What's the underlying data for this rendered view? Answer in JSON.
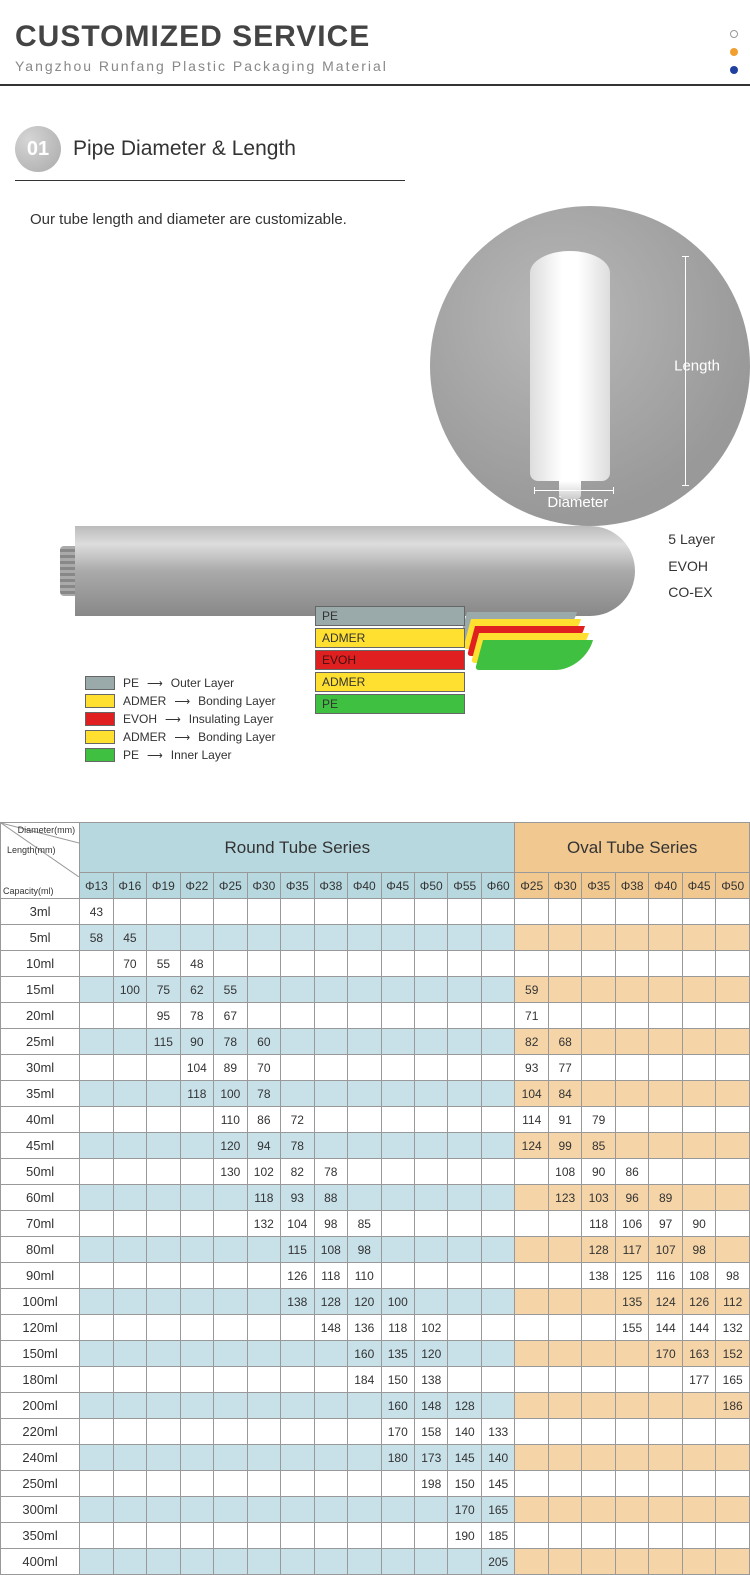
{
  "header": {
    "title": "CUSTOMIZED SERVICE",
    "subtitle": "Yangzhou Runfang Plastic Packaging Material"
  },
  "section1": {
    "badge": "01",
    "title": "Pipe Diameter & Length",
    "desc": "Our tube length and diameter are customizable.",
    "length_label": "Length",
    "diameter_label": "Diameter"
  },
  "diagram": {
    "side_labels": [
      "5 Layer",
      "EVOH",
      "CO-EX"
    ],
    "peel_labels": [
      "PE",
      "ADMER",
      "EVOH",
      "ADMER",
      "PE"
    ],
    "legend": [
      {
        "color": "#9aaaaa",
        "mat": "PE",
        "role": "Outer Layer"
      },
      {
        "color": "#ffe030",
        "mat": "ADMER",
        "role": "Bonding Layer"
      },
      {
        "color": "#e02020",
        "mat": "EVOH",
        "role": "Insulating Layer"
      },
      {
        "color": "#ffe030",
        "mat": "ADMER",
        "role": "Bonding Layer"
      },
      {
        "color": "#40c040",
        "mat": "PE",
        "role": "Inner Layer"
      }
    ]
  },
  "table": {
    "colors": {
      "round_bg": "#b8d8e0",
      "round_alt": "#c8e0e8",
      "oval_bg": "#f0c890",
      "oval_alt": "#f5d5a8",
      "border": "#999999"
    },
    "corner_labels": [
      "Diameter(mm)",
      "Length(mm)",
      "Capacity(ml)"
    ],
    "round_header": "Round Tube Series",
    "oval_header": "Oval Tube Series",
    "round_cols": [
      "Φ13",
      "Φ16",
      "Φ19",
      "Φ22",
      "Φ25",
      "Φ30",
      "Φ35",
      "Φ38",
      "Φ40",
      "Φ45",
      "Φ50",
      "Φ55",
      "Φ60"
    ],
    "oval_cols": [
      "Φ25",
      "Φ30",
      "Φ35",
      "Φ38",
      "Φ40",
      "Φ45",
      "Φ50"
    ],
    "rows": [
      {
        "cap": "3ml",
        "r": [
          "43",
          "",
          "",
          "",
          "",
          "",
          "",
          "",
          "",
          "",
          "",
          "",
          ""
        ],
        "o": [
          "",
          "",
          "",
          "",
          "",
          "",
          ""
        ]
      },
      {
        "cap": "5ml",
        "r": [
          "58",
          "45",
          "",
          "",
          "",
          "",
          "",
          "",
          "",
          "",
          "",
          "",
          ""
        ],
        "o": [
          "",
          "",
          "",
          "",
          "",
          "",
          ""
        ]
      },
      {
        "cap": "10ml",
        "r": [
          "",
          "70",
          "55",
          "48",
          "",
          "",
          "",
          "",
          "",
          "",
          "",
          "",
          ""
        ],
        "o": [
          "",
          "",
          "",
          "",
          "",
          "",
          ""
        ]
      },
      {
        "cap": "15ml",
        "r": [
          "",
          "100",
          "75",
          "62",
          "55",
          "",
          "",
          "",
          "",
          "",
          "",
          "",
          ""
        ],
        "o": [
          "59",
          "",
          "",
          "",
          "",
          "",
          ""
        ]
      },
      {
        "cap": "20ml",
        "r": [
          "",
          "",
          "95",
          "78",
          "67",
          "",
          "",
          "",
          "",
          "",
          "",
          "",
          ""
        ],
        "o": [
          "71",
          "",
          "",
          "",
          "",
          "",
          ""
        ]
      },
      {
        "cap": "25ml",
        "r": [
          "",
          "",
          "115",
          "90",
          "78",
          "60",
          "",
          "",
          "",
          "",
          "",
          "",
          ""
        ],
        "o": [
          "82",
          "68",
          "",
          "",
          "",
          "",
          ""
        ]
      },
      {
        "cap": "30ml",
        "r": [
          "",
          "",
          "",
          "104",
          "89",
          "70",
          "",
          "",
          "",
          "",
          "",
          "",
          ""
        ],
        "o": [
          "93",
          "77",
          "",
          "",
          "",
          "",
          ""
        ]
      },
      {
        "cap": "35ml",
        "r": [
          "",
          "",
          "",
          "118",
          "100",
          "78",
          "",
          "",
          "",
          "",
          "",
          "",
          ""
        ],
        "o": [
          "104",
          "84",
          "",
          "",
          "",
          "",
          ""
        ]
      },
      {
        "cap": "40ml",
        "r": [
          "",
          "",
          "",
          "",
          "110",
          "86",
          "72",
          "",
          "",
          "",
          "",
          "",
          ""
        ],
        "o": [
          "114",
          "91",
          "79",
          "",
          "",
          "",
          ""
        ]
      },
      {
        "cap": "45ml",
        "r": [
          "",
          "",
          "",
          "",
          "120",
          "94",
          "78",
          "",
          "",
          "",
          "",
          "",
          ""
        ],
        "o": [
          "124",
          "99",
          "85",
          "",
          "",
          "",
          ""
        ]
      },
      {
        "cap": "50ml",
        "r": [
          "",
          "",
          "",
          "",
          "130",
          "102",
          "82",
          "78",
          "",
          "",
          "",
          "",
          ""
        ],
        "o": [
          "",
          "108",
          "90",
          "86",
          "",
          "",
          ""
        ]
      },
      {
        "cap": "60ml",
        "r": [
          "",
          "",
          "",
          "",
          "",
          "118",
          "93",
          "88",
          "",
          "",
          "",
          "",
          ""
        ],
        "o": [
          "",
          "123",
          "103",
          "96",
          "89",
          "",
          ""
        ]
      },
      {
        "cap": "70ml",
        "r": [
          "",
          "",
          "",
          "",
          "",
          "132",
          "104",
          "98",
          "85",
          "",
          "",
          "",
          ""
        ],
        "o": [
          "",
          "",
          "118",
          "106",
          "97",
          "90",
          ""
        ]
      },
      {
        "cap": "80ml",
        "r": [
          "",
          "",
          "",
          "",
          "",
          "",
          "115",
          "108",
          "98",
          "",
          "",
          "",
          ""
        ],
        "o": [
          "",
          "",
          "128",
          "117",
          "107",
          "98",
          ""
        ]
      },
      {
        "cap": "90ml",
        "r": [
          "",
          "",
          "",
          "",
          "",
          "",
          "126",
          "118",
          "110",
          "",
          "",
          "",
          ""
        ],
        "o": [
          "",
          "",
          "138",
          "125",
          "116",
          "108",
          "98"
        ]
      },
      {
        "cap": "100ml",
        "r": [
          "",
          "",
          "",
          "",
          "",
          "",
          "138",
          "128",
          "120",
          "100",
          "",
          "",
          ""
        ],
        "o": [
          "",
          "",
          "",
          "135",
          "124",
          "126",
          "112"
        ]
      },
      {
        "cap": "120ml",
        "r": [
          "",
          "",
          "",
          "",
          "",
          "",
          "",
          "148",
          "136",
          "118",
          "102",
          "",
          ""
        ],
        "o": [
          "",
          "",
          "",
          "155",
          "144",
          "144",
          "132"
        ]
      },
      {
        "cap": "150ml",
        "r": [
          "",
          "",
          "",
          "",
          "",
          "",
          "",
          "",
          "160",
          "135",
          "120",
          "",
          ""
        ],
        "o": [
          "",
          "",
          "",
          "",
          "170",
          "163",
          "152"
        ]
      },
      {
        "cap": "180ml",
        "r": [
          "",
          "",
          "",
          "",
          "",
          "",
          "",
          "",
          "184",
          "150",
          "138",
          "",
          ""
        ],
        "o": [
          "",
          "",
          "",
          "",
          "",
          "177",
          "165"
        ]
      },
      {
        "cap": "200ml",
        "r": [
          "",
          "",
          "",
          "",
          "",
          "",
          "",
          "",
          "",
          "160",
          "148",
          "128",
          ""
        ],
        "o": [
          "",
          "",
          "",
          "",
          "",
          "",
          "186"
        ]
      },
      {
        "cap": "220ml",
        "r": [
          "",
          "",
          "",
          "",
          "",
          "",
          "",
          "",
          "",
          "170",
          "158",
          "140",
          "133"
        ],
        "o": [
          "",
          "",
          "",
          "",
          "",
          "",
          ""
        ]
      },
      {
        "cap": "240ml",
        "r": [
          "",
          "",
          "",
          "",
          "",
          "",
          "",
          "",
          "",
          "180",
          "173",
          "145",
          "140"
        ],
        "o": [
          "",
          "",
          "",
          "",
          "",
          "",
          ""
        ]
      },
      {
        "cap": "250ml",
        "r": [
          "",
          "",
          "",
          "",
          "",
          "",
          "",
          "",
          "",
          "",
          "198",
          "150",
          "145"
        ],
        "o": [
          "",
          "",
          "",
          "",
          "",
          "",
          ""
        ]
      },
      {
        "cap": "300ml",
        "r": [
          "",
          "",
          "",
          "",
          "",
          "",
          "",
          "",
          "",
          "",
          "",
          "170",
          "165"
        ],
        "o": [
          "",
          "",
          "",
          "",
          "",
          "",
          ""
        ]
      },
      {
        "cap": "350ml",
        "r": [
          "",
          "",
          "",
          "",
          "",
          "",
          "",
          "",
          "",
          "",
          "",
          "190",
          "185"
        ],
        "o": [
          "",
          "",
          "",
          "",
          "",
          "",
          ""
        ]
      },
      {
        "cap": "400ml",
        "r": [
          "",
          "",
          "",
          "",
          "",
          "",
          "",
          "",
          "",
          "",
          "",
          "",
          "205"
        ],
        "o": [
          "",
          "",
          "",
          "",
          "",
          "",
          ""
        ]
      }
    ]
  }
}
